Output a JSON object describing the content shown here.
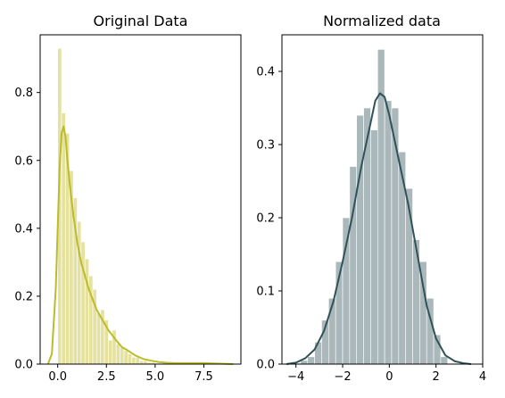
{
  "chart_data": [
    {
      "type": "bar",
      "title": "Original Data",
      "xlabel": "",
      "ylabel": "",
      "xlim": [
        -0.9,
        9.4
      ],
      "ylim": [
        0,
        0.97
      ],
      "xticks": [
        0.0,
        2.5,
        5.0,
        7.5
      ],
      "xtick_labels": [
        "0.0",
        "2.5",
        "5.0",
        "7.5"
      ],
      "yticks": [
        0.0,
        0.2,
        0.4,
        0.6,
        0.8
      ],
      "ytick_labels": [
        "0.0",
        "0.2",
        "0.4",
        "0.6",
        "0.8"
      ],
      "bar_color": "#e5e2a0",
      "kde_color": "#bcbc2a",
      "histogram": {
        "bin_edges": [
          0.0,
          0.2,
          0.4,
          0.6,
          0.8,
          1.0,
          1.2,
          1.4,
          1.6,
          1.8,
          2.0,
          2.2,
          2.4,
          2.6,
          2.8,
          3.0,
          3.2,
          3.4,
          3.6,
          3.8,
          4.0,
          4.2,
          4.4,
          4.6,
          4.8,
          5.0,
          5.2,
          5.4,
          5.6,
          5.8,
          6.0,
          6.2,
          6.4,
          6.6,
          6.8,
          7.0,
          7.2,
          7.4,
          7.6,
          7.8,
          8.0,
          8.2,
          8.4,
          8.6,
          8.8,
          9.0
        ],
        "densities": [
          0.93,
          0.74,
          0.68,
          0.57,
          0.49,
          0.42,
          0.36,
          0.31,
          0.26,
          0.22,
          0.15,
          0.16,
          0.13,
          0.07,
          0.1,
          0.06,
          0.05,
          0.04,
          0.03,
          0.02,
          0.02,
          0.01,
          0.01,
          0.005,
          0.005,
          0.0,
          0.0,
          0.005,
          0.0,
          0.0,
          0.005,
          0.0,
          0.0,
          0.0,
          0.005,
          0.0,
          0.0,
          0.0,
          0.0,
          0.0,
          0.0,
          0.0,
          0.0,
          0.0,
          0.0
        ]
      },
      "kde": {
        "x": [
          -0.5,
          -0.3,
          -0.1,
          0.0,
          0.1,
          0.2,
          0.3,
          0.4,
          0.5,
          0.6,
          0.8,
          1.0,
          1.2,
          1.4,
          1.6,
          1.8,
          2.0,
          2.2,
          2.4,
          2.6,
          2.8,
          3.0,
          3.3,
          3.6,
          4.0,
          4.4,
          4.8,
          5.2,
          5.6,
          6.0,
          6.5,
          7.0,
          7.5,
          8.0,
          8.5,
          9.0
        ],
        "y": [
          0.0,
          0.03,
          0.22,
          0.4,
          0.58,
          0.68,
          0.7,
          0.67,
          0.6,
          0.54,
          0.44,
          0.36,
          0.3,
          0.26,
          0.22,
          0.19,
          0.16,
          0.14,
          0.12,
          0.1,
          0.085,
          0.07,
          0.05,
          0.04,
          0.025,
          0.015,
          0.01,
          0.006,
          0.004,
          0.003,
          0.003,
          0.003,
          0.003,
          0.002,
          0.001,
          0.0
        ]
      }
    },
    {
      "type": "bar",
      "title": "Normalized data",
      "xlabel": "",
      "ylabel": "",
      "xlim": [
        -4.6,
        4.0
      ],
      "ylim": [
        0,
        0.45
      ],
      "xticks": [
        -4,
        -2,
        0,
        2,
        4
      ],
      "xtick_labels": [
        "−4",
        "−2",
        "0",
        "2",
        "4"
      ],
      "yticks": [
        0.0,
        0.1,
        0.2,
        0.3,
        0.4
      ],
      "ytick_labels": [
        "0.0",
        "0.1",
        "0.2",
        "0.3",
        "0.4"
      ],
      "bar_color": "#abb8bb",
      "kde_color": "#2f5257",
      "histogram": {
        "bin_edges": [
          -3.8,
          -3.5,
          -3.2,
          -2.9,
          -2.6,
          -2.3,
          -2.0,
          -1.7,
          -1.4,
          -1.1,
          -0.8,
          -0.5,
          -0.2,
          0.1,
          0.4,
          0.7,
          1.0,
          1.3,
          1.6,
          1.9,
          2.2,
          2.5
        ],
        "densities": [
          0.005,
          0.01,
          0.03,
          0.06,
          0.09,
          0.14,
          0.2,
          0.27,
          0.34,
          0.35,
          0.32,
          0.43,
          0.36,
          0.35,
          0.29,
          0.24,
          0.17,
          0.14,
          0.09,
          0.04,
          0.01
        ]
      },
      "kde": {
        "x": [
          -4.4,
          -4.0,
          -3.6,
          -3.2,
          -2.8,
          -2.4,
          -2.0,
          -1.6,
          -1.2,
          -0.8,
          -0.6,
          -0.4,
          -0.2,
          0.0,
          0.2,
          0.4,
          0.8,
          1.2,
          1.6,
          2.0,
          2.4,
          2.8,
          3.2,
          3.5
        ],
        "y": [
          0.0,
          0.002,
          0.008,
          0.02,
          0.045,
          0.085,
          0.14,
          0.2,
          0.27,
          0.33,
          0.36,
          0.37,
          0.365,
          0.34,
          0.31,
          0.28,
          0.22,
          0.15,
          0.08,
          0.035,
          0.012,
          0.004,
          0.001,
          0.0
        ]
      }
    }
  ]
}
